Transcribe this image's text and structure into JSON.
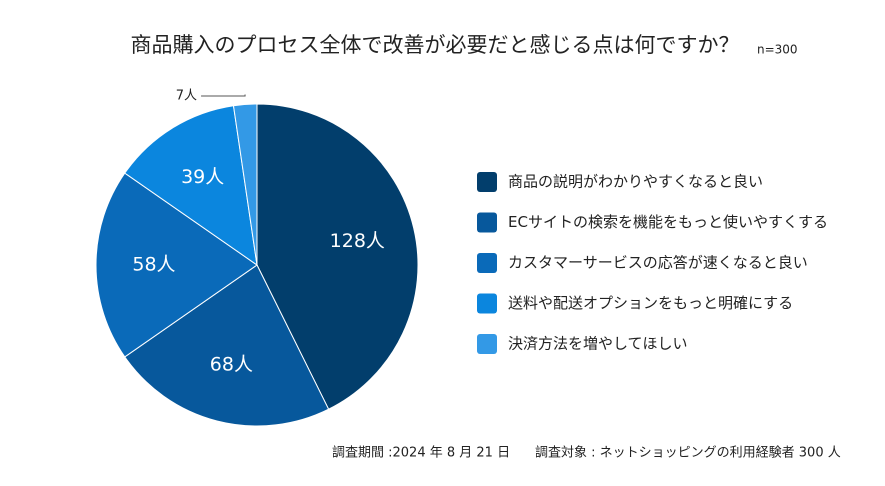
{
  "chart_data": {
    "type": "pie",
    "title": "商品購入のプロセス全体で改善が必要だと感じる点は何ですか？",
    "subtitle": "n=300",
    "categories": [
      "商品の説明がわかりやすくなると良い",
      "ECサイトの検索を機能をもっと使いやすくする",
      "カスタマーサービスの応答が速くなると良い",
      "送料や配送オプションをもっと明確にする",
      "決済方法を増やしてほしい"
    ],
    "values": [
      128,
      68,
      58,
      39,
      7
    ],
    "value_labels": [
      "128人",
      "68人",
      "58人",
      "39人",
      "7人"
    ],
    "colors": [
      "#023e6c",
      "#07589c",
      "#0a6ab9",
      "#0b86de",
      "#3399e6"
    ],
    "legend": "right",
    "notes": [
      "調査期間 :2024 年 8 月 21 日",
      "調査対象 : ネットショッピングの利用経験者 300 人"
    ]
  }
}
